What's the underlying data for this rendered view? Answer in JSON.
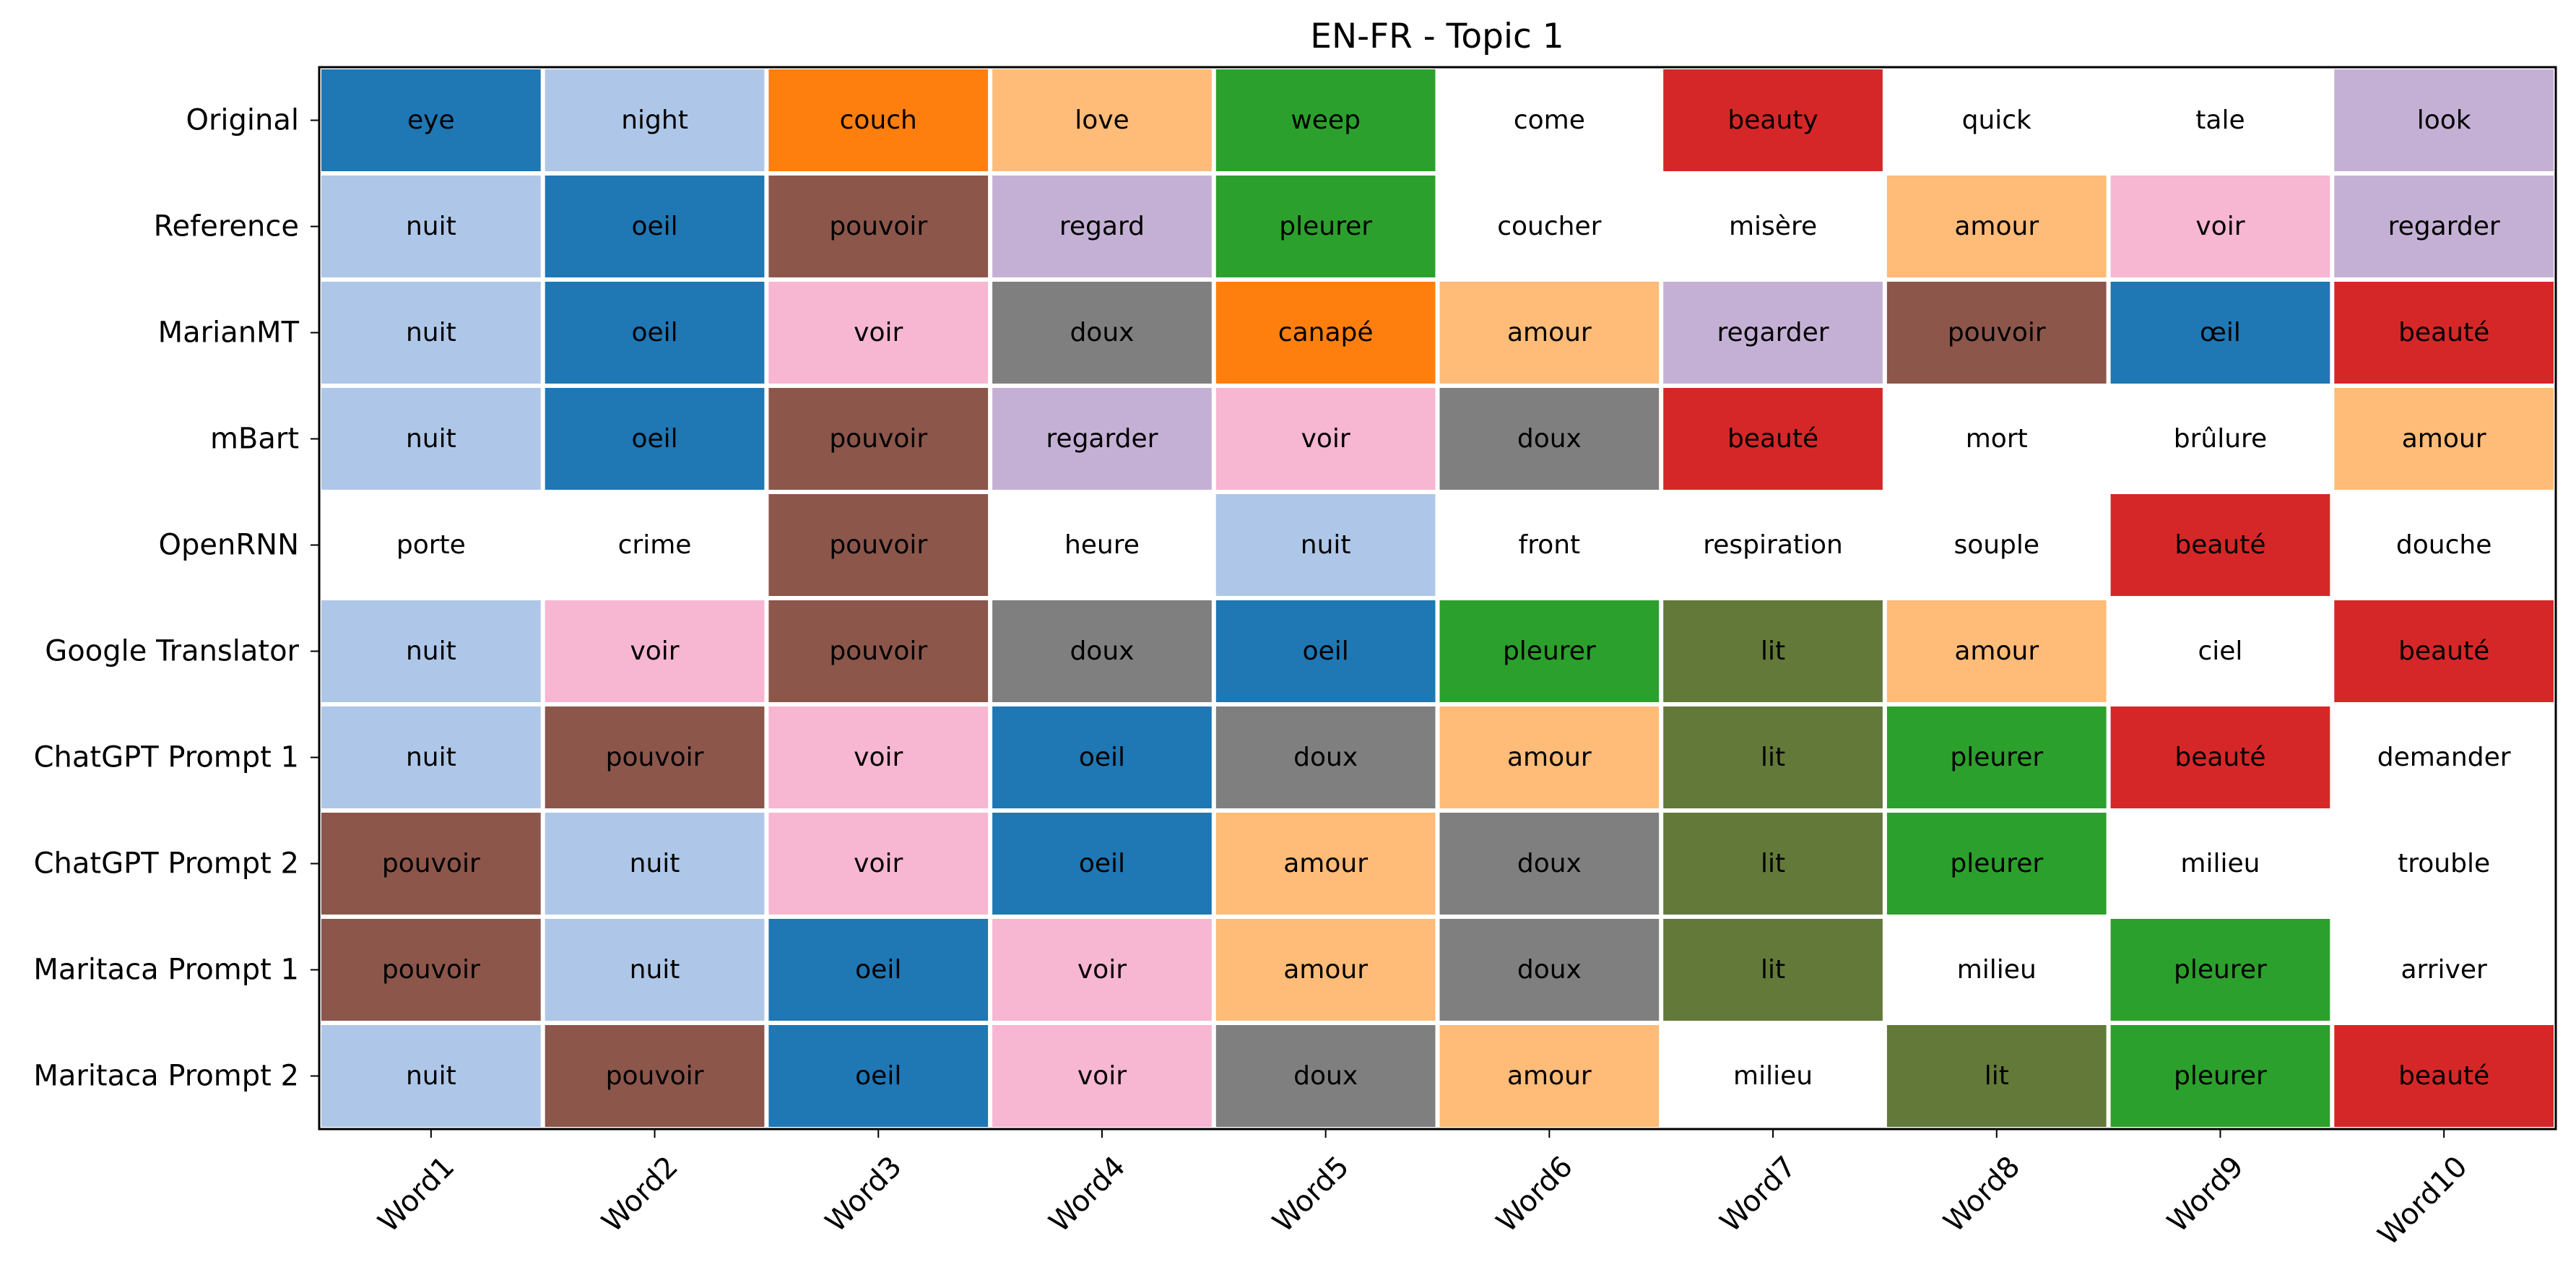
{
  "chart_data": {
    "type": "heatmap",
    "title": "EN-FR - Topic 1",
    "xlabel": "",
    "ylabel": "",
    "grid": false,
    "legend": "none",
    "rows": [
      "Original",
      "Reference",
      "MarianMT",
      "mBart",
      "OpenRNN",
      "Google Translator",
      "ChatGPT Prompt 1",
      "ChatGPT Prompt 2",
      "Maritaca Prompt 1",
      "Maritaca Prompt 2"
    ],
    "columns": [
      "Word1",
      "Word2",
      "Word3",
      "Word4",
      "Word5",
      "Word6",
      "Word7",
      "Word8",
      "Word9",
      "Word10"
    ],
    "cells": [
      [
        "eye",
        "night",
        "couch",
        "love",
        "weep",
        "come",
        "beauty",
        "quick",
        "tale",
        "look"
      ],
      [
        "nuit",
        "oeil",
        "pouvoir",
        "regard",
        "pleurer",
        "coucher",
        "misère",
        "amour",
        "voir",
        "regarder"
      ],
      [
        "nuit",
        "oeil",
        "voir",
        "doux",
        "canapé",
        "amour",
        "regarder",
        "pouvoir",
        "œil",
        "beauté"
      ],
      [
        "nuit",
        "oeil",
        "pouvoir",
        "regarder",
        "voir",
        "doux",
        "beauté",
        "mort",
        "brûlure",
        "amour"
      ],
      [
        "porte",
        "crime",
        "pouvoir",
        "heure",
        "nuit",
        "front",
        "respiration",
        "souple",
        "beauté",
        "douche"
      ],
      [
        "nuit",
        "voir",
        "pouvoir",
        "doux",
        "oeil",
        "pleurer",
        "lit",
        "amour",
        "ciel",
        "beauté"
      ],
      [
        "nuit",
        "pouvoir",
        "voir",
        "oeil",
        "doux",
        "amour",
        "lit",
        "pleurer",
        "beauté",
        "demander"
      ],
      [
        "pouvoir",
        "nuit",
        "voir",
        "oeil",
        "amour",
        "doux",
        "lit",
        "pleurer",
        "milieu",
        "trouble"
      ],
      [
        "pouvoir",
        "nuit",
        "oeil",
        "voir",
        "amour",
        "doux",
        "lit",
        "milieu",
        "pleurer",
        "arriver"
      ],
      [
        "nuit",
        "pouvoir",
        "oeil",
        "voir",
        "doux",
        "amour",
        "milieu",
        "lit",
        "pleurer",
        "beauté"
      ]
    ],
    "cell_colors": [
      [
        "#1f77b4",
        "#aec7e8",
        "#ff7f0e",
        "#ffbb78",
        "#2ca02c",
        "#ffffff",
        "#d62728",
        "#ffffff",
        "#ffffff",
        "#c5b0d5"
      ],
      [
        "#aec7e8",
        "#1f77b4",
        "#8c564b",
        "#c5b0d5",
        "#2ca02c",
        "#ffffff",
        "#ffffff",
        "#ffbb78",
        "#f7b6d2",
        "#c5b0d5"
      ],
      [
        "#aec7e8",
        "#1f77b4",
        "#f7b6d2",
        "#7f7f7f",
        "#ff7f0e",
        "#ffbb78",
        "#c5b0d5",
        "#8c564b",
        "#1f77b4",
        "#d62728"
      ],
      [
        "#aec7e8",
        "#1f77b4",
        "#8c564b",
        "#c5b0d5",
        "#f7b6d2",
        "#7f7f7f",
        "#d62728",
        "#ffffff",
        "#ffffff",
        "#ffbb78"
      ],
      [
        "#ffffff",
        "#ffffff",
        "#8c564b",
        "#ffffff",
        "#aec7e8",
        "#ffffff",
        "#ffffff",
        "#ffffff",
        "#d62728",
        "#ffffff"
      ],
      [
        "#aec7e8",
        "#f7b6d2",
        "#8c564b",
        "#7f7f7f",
        "#1f77b4",
        "#2ca02c",
        "#637939",
        "#ffbb78",
        "#ffffff",
        "#d62728"
      ],
      [
        "#aec7e8",
        "#8c564b",
        "#f7b6d2",
        "#1f77b4",
        "#7f7f7f",
        "#ffbb78",
        "#637939",
        "#2ca02c",
        "#d62728",
        "#ffffff"
      ],
      [
        "#8c564b",
        "#aec7e8",
        "#f7b6d2",
        "#1f77b4",
        "#ffbb78",
        "#7f7f7f",
        "#637939",
        "#2ca02c",
        "#ffffff",
        "#ffffff"
      ],
      [
        "#8c564b",
        "#aec7e8",
        "#1f77b4",
        "#f7b6d2",
        "#ffbb78",
        "#7f7f7f",
        "#637939",
        "#ffffff",
        "#2ca02c",
        "#ffffff"
      ],
      [
        "#aec7e8",
        "#8c564b",
        "#1f77b4",
        "#f7b6d2",
        "#7f7f7f",
        "#ffbb78",
        "#ffffff",
        "#637939",
        "#2ca02c",
        "#d62728"
      ]
    ],
    "border_color": "#000000",
    "separator_color": "#ffffff"
  }
}
